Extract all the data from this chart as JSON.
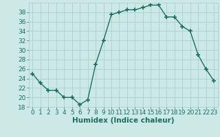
{
  "x": [
    0,
    1,
    2,
    3,
    4,
    5,
    6,
    7,
    8,
    9,
    10,
    11,
    12,
    13,
    14,
    15,
    16,
    17,
    18,
    19,
    20,
    21,
    22,
    23
  ],
  "y": [
    25,
    23,
    21.5,
    21.5,
    20,
    20,
    18.5,
    19.5,
    27,
    32,
    37.5,
    38,
    38.5,
    38.5,
    39,
    39.5,
    39.5,
    37,
    37,
    35,
    34,
    29,
    26,
    23.5
  ],
  "line_color": "#1a6e60",
  "marker": "+",
  "marker_size": 4,
  "marker_lw": 1.2,
  "bg_color": "#cce9e5",
  "grid_color": "#aacfcb",
  "xlabel": "Humidex (Indice chaleur)",
  "xlabel_fontsize": 7.5,
  "tick_fontsize": 6.5,
  "xlim": [
    -0.5,
    23.5
  ],
  "ylim": [
    18,
    40
  ],
  "yticks": [
    18,
    20,
    22,
    24,
    26,
    28,
    30,
    32,
    34,
    36,
    38
  ],
  "xticks": [
    0,
    1,
    2,
    3,
    4,
    5,
    6,
    7,
    8,
    9,
    10,
    11,
    12,
    13,
    14,
    15,
    16,
    17,
    18,
    19,
    20,
    21,
    22,
    23
  ],
  "tick_color": "#1a6e60",
  "linewidth": 1.0
}
